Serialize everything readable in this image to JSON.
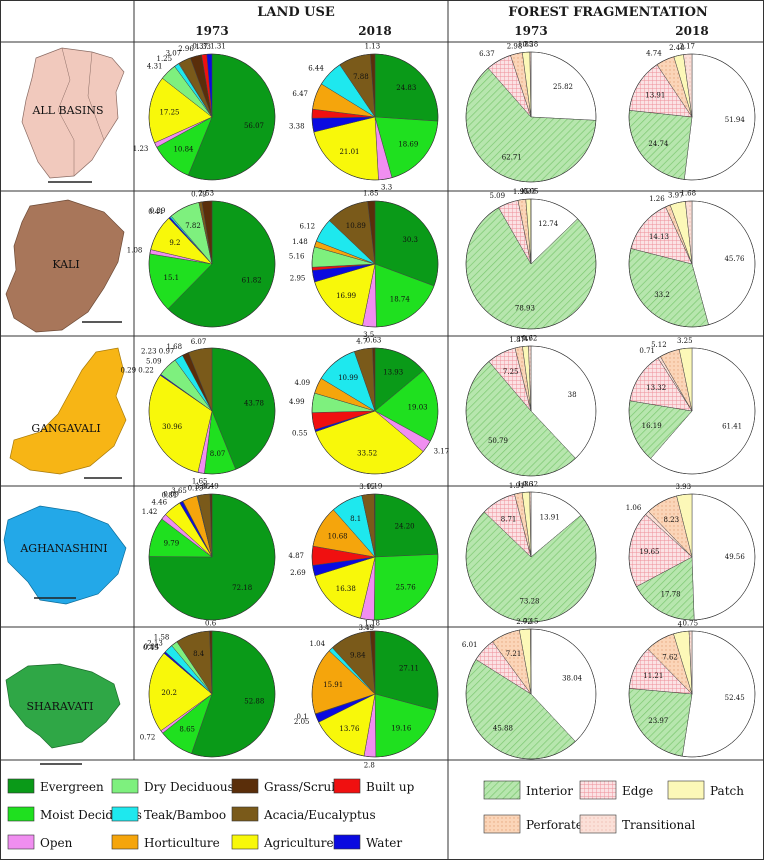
{
  "headers": {
    "land_use": "LAND USE",
    "forest_fragmentation": "FOREST FRAGMENTATION",
    "years": [
      "1973",
      "2018",
      "1973",
      "2018"
    ]
  },
  "colors": {
    "Evergreen": "#0a9a18",
    "Moist Deciduous": "#1fe01f",
    "Dry Deciduous": "#7ef07e",
    "Teak/Bamboo": "#1ee8ee",
    "Open": "#f08ef0",
    "Horticulture": "#f5a50c",
    "Grass/Scrub": "#5a2e0a",
    "Acacia/Eucalyptus": "#7a5a1a",
    "Agriculture": "#f8f80a",
    "Built up": "#f01010",
    "Water": "#0a0ae0",
    "Interior": "#a8e0a0",
    "Edge": "#f8c0c8",
    "Patch": "#fcf8b8",
    "Perforated": "#f8c8a8",
    "Transitional": "#f8d0c8",
    "Unclassified": "#ffffff"
  },
  "legend": {
    "land_use": [
      {
        "name": "Evergreen",
        "col": 0,
        "row": 0
      },
      {
        "name": "Dry Deciduous",
        "col": 1,
        "row": 0
      },
      {
        "name": "Grass/Scrub",
        "col": 2,
        "row": 0
      },
      {
        "name": "Built up",
        "col": 3,
        "row": 0
      },
      {
        "name": "Moist Deciduous",
        "col": 0,
        "row": 1
      },
      {
        "name": "Teak/Bamboo",
        "col": 1,
        "row": 1
      },
      {
        "name": "Acacia/Eucalyptus",
        "col": 2,
        "row": 1
      },
      {
        "name": "Open",
        "col": 0,
        "row": 2
      },
      {
        "name": "Horticulture",
        "col": 1,
        "row": 2
      },
      {
        "name": "Agriculture",
        "col": 2,
        "row": 2
      },
      {
        "name": "Water",
        "col": 3,
        "row": 2
      }
    ],
    "fragmentation": [
      {
        "name": "Interior",
        "col": 0,
        "row": 0
      },
      {
        "name": "Edge",
        "col": 1,
        "row": 0
      },
      {
        "name": "Patch",
        "col": 2,
        "row": 0
      },
      {
        "name": "Perforated",
        "col": 0,
        "row": 1
      },
      {
        "name": "Transitional",
        "col": 1,
        "row": 1
      }
    ]
  },
  "chart_data": [
    {
      "type": "pie",
      "basin": "ALL BASINS",
      "panel": "Land use",
      "year": "1973",
      "categories": [
        "Evergreen",
        "Moist Deciduous",
        "Open",
        "Agriculture",
        "Dry Deciduous",
        "Teak/Bamboo",
        "Horticulture",
        "Acacia/Eucalyptus",
        "Grass/Scrub",
        "Built up",
        "Water"
      ],
      "values": [
        56.07,
        10.84,
        1.23,
        17.25,
        4.31,
        1.25,
        0.19,
        3.07,
        2.96,
        1.33,
        1.31
      ],
      "labels": [
        "56.07",
        "10.84",
        "1.23",
        "17.25",
        "4.31",
        "1.25",
        "",
        "3.07",
        "2.96",
        "1.33",
        "0.37 1.31"
      ]
    },
    {
      "type": "pie",
      "basin": "ALL BASINS",
      "panel": "Land use",
      "year": "2018",
      "categories": [
        "Evergreen",
        "Moist Deciduous",
        "Open",
        "Agriculture",
        "Water",
        "Built up",
        "Horticulture",
        "Teak/Bamboo",
        "Acacia/Eucalyptus",
        "Grass/Scrub"
      ],
      "values": [
        24.83,
        18.69,
        3.3,
        21.01,
        3.38,
        2.19,
        6.47,
        6.44,
        7.88,
        1.13
      ],
      "labels": [
        "24.83",
        "18.69",
        "3.3",
        "21.01",
        "3.38",
        "",
        "6.47",
        "6.44",
        "7.88",
        "1.13"
      ]
    },
    {
      "type": "pie",
      "basin": "ALL BASINS",
      "panel": "Forest fragmentation",
      "year": "1973",
      "categories": [
        "Unclassified",
        "Interior",
        "Edge",
        "Perforated",
        "Patch",
        "Transitional"
      ],
      "values": [
        25.82,
        62.71,
        6.37,
        2.98,
        1.85,
        0.28
      ],
      "labels": [
        "25.82",
        "62.71",
        "6.37",
        "2.98",
        "1.85",
        "0.28"
      ]
    },
    {
      "type": "pie",
      "basin": "ALL BASINS",
      "panel": "Forest fragmentation",
      "year": "2018",
      "categories": [
        "Unclassified",
        "Interior",
        "Edge",
        "Perforated",
        "Patch",
        "Transitional"
      ],
      "values": [
        51.94,
        24.74,
        13.91,
        4.74,
        2.48,
        2.17
      ],
      "labels": [
        "51.94",
        "24.74",
        "13.91",
        "4.74",
        "2.48",
        "2.17"
      ]
    },
    {
      "type": "pie",
      "basin": "KALI",
      "panel": "Land use",
      "year": "1973",
      "categories": [
        "Evergreen",
        "Moist Deciduous",
        "Open",
        "Agriculture",
        "Water",
        "Teak/Bamboo",
        "Dry Deciduous",
        "Acacia/Eucalyptus",
        "Grass/Scrub"
      ],
      "values": [
        61.82,
        15.1,
        1.08,
        9.2,
        0.41,
        0.39,
        7.82,
        0.79,
        2.53
      ],
      "labels": [
        "61.82",
        "15.1",
        "1.08",
        "9.2",
        "0.41",
        "0.39",
        "7.82",
        "0.79",
        "2.53"
      ]
    },
    {
      "type": "pie",
      "basin": "KALI",
      "panel": "Land use",
      "year": "2018",
      "categories": [
        "Evergreen",
        "Moist Deciduous",
        "Open",
        "Agriculture",
        "Water",
        "Built up",
        "Dry Deciduous",
        "Horticulture",
        "Teak/Bamboo",
        "Acacia/Eucalyptus",
        "Grass/Scrub"
      ],
      "values": [
        30.3,
        18.74,
        3.5,
        16.99,
        2.95,
        0.8,
        5.16,
        1.48,
        6.12,
        10.89,
        1.85
      ],
      "labels": [
        "30.3",
        "18.74",
        "3.5",
        "16.99",
        "2.95",
        "",
        "5.16",
        "1.48",
        "6.12",
        "10.89",
        "1.85"
      ]
    },
    {
      "type": "pie",
      "basin": "KALI",
      "panel": "Forest fragmentation",
      "year": "1973",
      "categories": [
        "Unclassified",
        "Interior",
        "Edge",
        "Perforated",
        "Patch",
        "Transitional"
      ],
      "values": [
        12.74,
        78.93,
        5.09,
        1.95,
        1.22,
        0.05
      ],
      "labels": [
        "12.74",
        "78.93",
        "5.09",
        "1.95",
        "1.22",
        "0.05"
      ]
    },
    {
      "type": "pie",
      "basin": "KALI",
      "panel": "Forest fragmentation",
      "year": "2018",
      "categories": [
        "Unclassified",
        "Interior",
        "Edge",
        "Perforated",
        "Patch",
        "Transitional"
      ],
      "values": [
        45.76,
        33.2,
        14.13,
        1.26,
        3.97,
        1.68
      ],
      "labels": [
        "45.76",
        "33.2",
        "14.13",
        "1.26",
        "3.97",
        "1.68"
      ]
    },
    {
      "type": "pie",
      "basin": "GANGAVALI",
      "panel": "Land use",
      "year": "1973",
      "categories": [
        "Evergreen",
        "Moist Deciduous",
        "Open",
        "Agriculture",
        "Water",
        "Dry Deciduous",
        "Teak/Bamboo",
        "Grass/Scrub",
        "Acacia/Eucalyptus"
      ],
      "values": [
        43.78,
        8.07,
        1.65,
        30.96,
        0.29,
        5.09,
        2.23,
        1.68,
        6.07
      ],
      "labels": [
        "43.78",
        "8.07",
        "1.65",
        "30.96",
        "0.29 0.22",
        "5.09",
        "2.23 0.97",
        "1.68",
        "6.07"
      ]
    },
    {
      "type": "pie",
      "basin": "GANGAVALI",
      "panel": "Land use",
      "year": "2018",
      "categories": [
        "Evergreen",
        "Moist Deciduous",
        "Open",
        "Agriculture",
        "Water",
        "Built up",
        "Dry Deciduous",
        "Horticulture",
        "Teak/Bamboo",
        "Acacia/Eucalyptus",
        "Grass/Scrub"
      ],
      "values": [
        13.93,
        19.03,
        3.17,
        33.52,
        0.55,
        4.38,
        4.99,
        4.09,
        10.99,
        4.7,
        0.63
      ],
      "labels": [
        "13.93",
        "19.03",
        "3.17",
        "33.52",
        "0.55",
        "",
        "4.99",
        "4.09",
        "10.99",
        "4.7",
        "0.63"
      ]
    },
    {
      "type": "pie",
      "basin": "GANGAVALI",
      "panel": "Forest fragmentation",
      "year": "1973",
      "categories": [
        "Unclassified",
        "Interior",
        "Edge",
        "Perforated",
        "Patch",
        "Transitional"
      ],
      "values": [
        38.0,
        50.79,
        7.25,
        1.87,
        1.47,
        0.62
      ],
      "labels": [
        "38",
        "50.79",
        "7.25",
        "1.87",
        "1.47",
        "0.62"
      ]
    },
    {
      "type": "pie",
      "basin": "GANGAVALI",
      "panel": "Forest fragmentation",
      "year": "2018",
      "categories": [
        "Unclassified",
        "Interior",
        "Edge",
        "Transitional",
        "Perforated",
        "Patch"
      ],
      "values": [
        61.41,
        16.19,
        13.32,
        0.71,
        5.12,
        3.25
      ],
      "labels": [
        "61.41",
        "16.19",
        "13.32",
        "0.71",
        "5.12",
        "3.25"
      ]
    },
    {
      "type": "pie",
      "basin": "AGHANASHINI",
      "panel": "Land use",
      "year": "1973",
      "categories": [
        "Evergreen",
        "Moist Deciduous",
        "Open",
        "Agriculture",
        "Water",
        "Teak/Bamboo",
        "Horticulture",
        "Dry Deciduous",
        "Acacia/Eucalyptus",
        "Grass/Scrub"
      ],
      "values": [
        72.18,
        9.79,
        1.42,
        4.46,
        0.81,
        0.09,
        3.65,
        0.15,
        3.05,
        0.49
      ],
      "labels": [
        "72.18",
        "9.79",
        "1.42",
        "4.46",
        "0.81",
        "0.09",
        "3.65",
        "0.15",
        "3.05",
        "0.49"
      ]
    },
    {
      "type": "pie",
      "basin": "AGHANASHINI",
      "panel": "Land use",
      "year": "2018",
      "categories": [
        "Evergreen",
        "Moist Deciduous",
        "Open",
        "Agriculture",
        "Water",
        "Built up",
        "Horticulture",
        "Teak/Bamboo",
        "Acacia/Eucalyptus",
        "Grass/Scrub"
      ],
      "values": [
        24.2,
        25.76,
        3.49,
        16.38,
        2.69,
        4.87,
        10.68,
        8.1,
        3.15,
        0.19
      ],
      "labels": [
        "24.20",
        "25.76",
        "3.49",
        "16.38",
        "2.69",
        "4.87",
        "10.68",
        "8.1",
        "3.15",
        "0.19"
      ]
    },
    {
      "type": "pie",
      "basin": "AGHANASHINI",
      "panel": "Forest fragmentation",
      "year": "1973",
      "categories": [
        "Unclassified",
        "Interior",
        "Edge",
        "Perforated",
        "Patch",
        "Transitional"
      ],
      "values": [
        13.91,
        73.28,
        8.71,
        1.91,
        1.86,
        0.32
      ],
      "labels": [
        "13.91",
        "73.28",
        "8.71",
        "1.91",
        "1.86",
        "0.32"
      ]
    },
    {
      "type": "pie",
      "basin": "AGHANASHINI",
      "panel": "Forest fragmentation",
      "year": "2018",
      "categories": [
        "Unclassified",
        "Interior",
        "Edge",
        "Transitional",
        "Perforated",
        "Patch"
      ],
      "values": [
        49.56,
        17.78,
        19.65,
        1.06,
        8.23,
        3.93
      ],
      "labels": [
        "49.56",
        "17.78",
        "19.65",
        "1.06",
        "8.23",
        "3.93"
      ]
    },
    {
      "type": "pie",
      "basin": "SHARAVATI",
      "panel": "Land use",
      "year": "1973",
      "categories": [
        "Evergreen",
        "Moist Deciduous",
        "Open",
        "Agriculture",
        "Water",
        "Built up",
        "Teak/Bamboo",
        "Dry Deciduous",
        "Acacia/Eucalyptus",
        "Grass/Scrub"
      ],
      "values": [
        52.88,
        8.65,
        0.72,
        20.2,
        0.45,
        0.04,
        2.13,
        1.58,
        8.4,
        0.6
      ],
      "labels": [
        "52.88",
        "8.65",
        "0.72",
        "20.2",
        "0.45",
        "0.04",
        "2.13",
        "1.58",
        "8.4",
        "0.6"
      ]
    },
    {
      "type": "pie",
      "basin": "SHARAVATI",
      "panel": "Land use",
      "year": "2018",
      "categories": [
        "Evergreen",
        "Moist Deciduous",
        "Open",
        "Agriculture",
        "Water",
        "Built up",
        "Horticulture",
        "Teak/Bamboo",
        "Acacia/Eucalyptus",
        "Grass/Scrub"
      ],
      "values": [
        27.11,
        19.16,
        2.8,
        13.76,
        2.05,
        0.1,
        15.91,
        1.04,
        9.84,
        1.18
      ],
      "labels": [
        "27.11",
        "19.16",
        "2.8",
        "13.76",
        "2.05",
        "0.1",
        "15.91",
        "1.04",
        "9.84",
        "1.18"
      ]
    },
    {
      "type": "pie",
      "basin": "SHARAVATI",
      "panel": "Forest fragmentation",
      "year": "1973",
      "categories": [
        "Unclassified",
        "Interior",
        "Edge",
        "Perforated",
        "Patch",
        "Transitional"
      ],
      "values": [
        38.04,
        45.88,
        6.01,
        7.21,
        2.72,
        0.15
      ],
      "labels": [
        "38.04",
        "45.88",
        "6.01",
        "7.21",
        "2.72",
        "0.15"
      ]
    },
    {
      "type": "pie",
      "basin": "SHARAVATI",
      "panel": "Forest fragmentation",
      "year": "2018",
      "categories": [
        "Unclassified",
        "Interior",
        "Edge",
        "Perforated",
        "Patch",
        "Transitional"
      ],
      "values": [
        52.45,
        23.97,
        11.21,
        7.62,
        4.0,
        0.75
      ],
      "labels": [
        "52.45",
        "23.97",
        "11.21",
        "7.62",
        "4",
        "0.75"
      ]
    }
  ]
}
